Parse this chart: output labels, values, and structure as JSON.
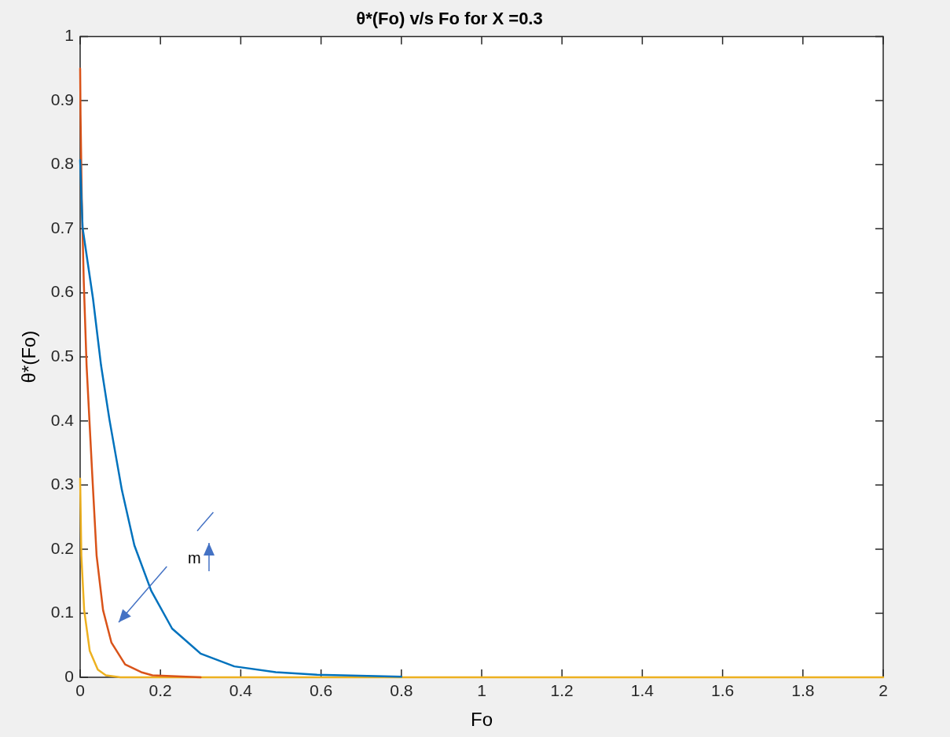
{
  "chart_data": {
    "type": "line",
    "title": "θ*(Fo) v/s Fo for X =0.3",
    "xlabel": "Fo",
    "ylabel": "θ*(Fo)",
    "xlim": [
      0,
      2
    ],
    "xticks": [
      0,
      0.2,
      0.4,
      0.6,
      0.8,
      1,
      1.2,
      1.4,
      1.6,
      1.8,
      2
    ],
    "ylim": [
      0,
      1
    ],
    "yticks": [
      0,
      0.1,
      0.2,
      0.3,
      0.4,
      0.5,
      0.6,
      0.7,
      0.8,
      0.9,
      1
    ],
    "grid": false,
    "legend": false,
    "marker": "none",
    "line_style": "solid",
    "annotations": [
      "m"
    ],
    "series": [
      {
        "color": "#0072bd",
        "x": [
          0,
          0.006,
          0.032,
          0.052,
          0.073,
          0.104,
          0.135,
          0.177,
          0.229,
          0.3,
          0.384,
          0.487,
          0.59,
          0.8
        ],
        "values": [
          0.807,
          0.702,
          0.591,
          0.487,
          0.402,
          0.292,
          0.206,
          0.135,
          0.076,
          0.037,
          0.017,
          0.008,
          0.004,
          0.001
        ]
      },
      {
        "color": "#d95319",
        "x": [
          0,
          0.001,
          0.004,
          0.009,
          0.016,
          0.03,
          0.041,
          0.057,
          0.078,
          0.112,
          0.152,
          0.18,
          0.3
        ],
        "values": [
          0.95,
          0.878,
          0.748,
          0.618,
          0.487,
          0.318,
          0.19,
          0.105,
          0.054,
          0.02,
          0.008,
          0.003,
          0
        ]
      },
      {
        "color": "#edb120",
        "x": [
          0,
          0.003,
          0.01,
          0.024,
          0.044,
          0.064,
          0.1,
          2
        ],
        "values": [
          0.31,
          0.19,
          0.105,
          0.041,
          0.012,
          0.003,
          0,
          0
        ]
      }
    ]
  }
}
